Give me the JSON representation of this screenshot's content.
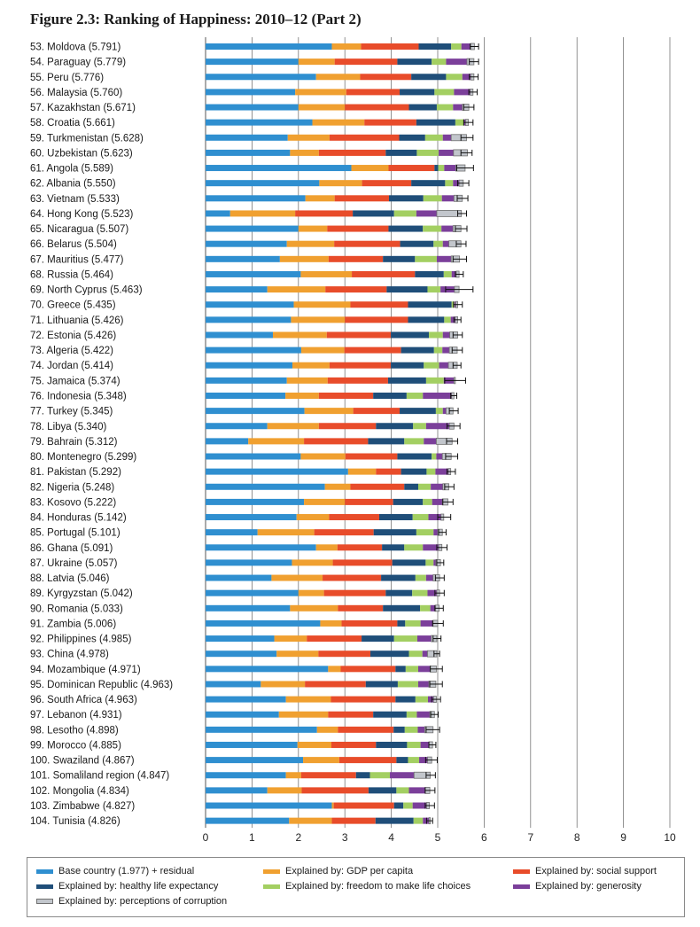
{
  "figure_title": "Figure 2.3: Ranking of Happiness: 2010–12 (Part 2)",
  "colors": {
    "base": "#2f8fd0",
    "gdp": "#f0a030",
    "social": "#e84c2a",
    "health": "#1f4e79",
    "freedom": "#a3cf62",
    "generosity": "#7b3f9a",
    "corruption": "#c2c6cc"
  },
  "legend": [
    {
      "key": "base",
      "label": "Base country (1.977) + residual"
    },
    {
      "key": "gdp",
      "label": "Explained by: GDP per capita"
    },
    {
      "key": "social",
      "label": "Explained by: social support"
    },
    {
      "key": "health",
      "label": "Explained by: healthy life expectancy"
    },
    {
      "key": "freedom",
      "label": "Explained by: freedom to make life choices"
    },
    {
      "key": "generosity",
      "label": "Explained by: generosity"
    },
    {
      "key": "corruption",
      "label": "Explained by: perceptions of corruption"
    }
  ],
  "chart_data": {
    "type": "bar",
    "orientation": "horizontal",
    "stacked": true,
    "xlim": [
      0,
      10
    ],
    "xticks": [
      "0",
      "1",
      "2",
      "3",
      "4",
      "5",
      "6",
      "7",
      "8",
      "9",
      "10"
    ],
    "grid": "vertical",
    "legend_position": "bottom",
    "series_keys": [
      "base",
      "gdp",
      "social",
      "health",
      "freedom",
      "generosity",
      "corruption"
    ],
    "rows": [
      {
        "label": "53. Moldova (5.791)",
        "score": 5.791,
        "segments": [
          2.72,
          0.63,
          1.24,
          0.7,
          0.22,
          0.2,
          0.08
        ],
        "ci": [
          5.7,
          5.88
        ]
      },
      {
        "label": "54. Paraguay (5.779)",
        "score": 5.779,
        "segments": [
          2.0,
          0.78,
          1.35,
          0.74,
          0.31,
          0.45,
          0.15
        ],
        "ci": [
          5.68,
          5.88
        ]
      },
      {
        "label": "55. Peru (5.776)",
        "score": 5.776,
        "segments": [
          2.38,
          0.95,
          1.1,
          0.75,
          0.35,
          0.18,
          0.07
        ],
        "ci": [
          5.68,
          5.87
        ]
      },
      {
        "label": "56. Malaysia (5.760)",
        "score": 5.76,
        "segments": [
          1.93,
          1.1,
          1.15,
          0.75,
          0.42,
          0.35,
          0.06
        ],
        "ci": [
          5.67,
          5.85
        ]
      },
      {
        "label": "57. Kazakhstan (5.671)",
        "score": 5.671,
        "segments": [
          2.0,
          1.0,
          1.38,
          0.6,
          0.35,
          0.2,
          0.14
        ],
        "ci": [
          5.56,
          5.78
        ]
      },
      {
        "label": "58. Croatia (5.661)",
        "score": 5.661,
        "segments": [
          2.3,
          1.12,
          1.12,
          0.84,
          0.18,
          0.04,
          0.06
        ],
        "ci": [
          5.56,
          5.76
        ]
      },
      {
        "label": "59. Turkmenistan (5.628)",
        "score": 5.628,
        "segments": [
          1.77,
          0.9,
          1.5,
          0.56,
          0.38,
          0.18,
          0.33
        ],
        "ci": [
          5.5,
          5.76
        ]
      },
      {
        "label": "60. Uzbekistan (5.623)",
        "score": 5.623,
        "segments": [
          1.82,
          0.62,
          1.44,
          0.67,
          0.47,
          0.32,
          0.3
        ],
        "ci": [
          5.5,
          5.74
        ]
      },
      {
        "label": "61. Angola (5.589)",
        "score": 5.589,
        "segments": [
          3.14,
          0.8,
          0.99,
          0.08,
          0.13,
          0.25,
          0.2
        ],
        "ci": [
          5.41,
          5.77
        ]
      },
      {
        "label": "62. Albania (5.550)",
        "score": 5.55,
        "segments": [
          2.45,
          0.92,
          1.06,
          0.73,
          0.17,
          0.13,
          0.09
        ],
        "ci": [
          5.43,
          5.67
        ]
      },
      {
        "label": "63. Vietnam (5.533)",
        "score": 5.533,
        "segments": [
          2.15,
          0.63,
          1.17,
          0.74,
          0.4,
          0.26,
          0.18
        ],
        "ci": [
          5.42,
          5.65
        ]
      },
      {
        "label": "64. Hong Kong (5.523)",
        "score": 5.523,
        "segments": [
          0.53,
          1.4,
          1.24,
          0.89,
          0.48,
          0.44,
          0.53
        ],
        "ci": [
          5.43,
          5.62
        ]
      },
      {
        "label": "65. Nicaragua (5.507)",
        "score": 5.507,
        "segments": [
          2.0,
          0.62,
          1.32,
          0.74,
          0.4,
          0.25,
          0.17
        ],
        "ci": [
          5.38,
          5.63
        ]
      },
      {
        "label": "66. Belarus (5.504)",
        "score": 5.504,
        "segments": [
          1.75,
          1.02,
          1.42,
          0.72,
          0.2,
          0.13,
          0.26
        ],
        "ci": [
          5.4,
          5.61
        ]
      },
      {
        "label": "67. Mauritius (5.477)",
        "score": 5.477,
        "segments": [
          1.6,
          1.05,
          1.17,
          0.69,
          0.47,
          0.31,
          0.18
        ],
        "ci": [
          5.33,
          5.62
        ]
      },
      {
        "label": "68. Russia (5.464)",
        "score": 5.464,
        "segments": [
          2.05,
          1.1,
          1.36,
          0.62,
          0.17,
          0.1,
          0.06
        ],
        "ci": [
          5.38,
          5.55
        ]
      },
      {
        "label": "69. North Cyprus (5.463)",
        "score": 5.463,
        "segments": [
          1.33,
          1.25,
          1.32,
          0.88,
          0.28,
          0.3,
          0.1
        ],
        "ci": [
          5.17,
          5.76
        ]
      },
      {
        "label": "70. Greece (5.435)",
        "score": 5.435,
        "segments": [
          1.9,
          1.22,
          1.24,
          0.94,
          0.06,
          0.03,
          0.04
        ],
        "ci": [
          5.34,
          5.53
        ]
      },
      {
        "label": "71. Lithuania (5.426)",
        "score": 5.426,
        "segments": [
          1.84,
          1.16,
          1.36,
          0.78,
          0.14,
          0.1,
          0.05
        ],
        "ci": [
          5.35,
          5.5
        ]
      },
      {
        "label": "72. Estonia (5.426)",
        "score": 5.426,
        "segments": [
          1.45,
          1.16,
          1.38,
          0.82,
          0.3,
          0.15,
          0.17
        ],
        "ci": [
          5.33,
          5.53
        ]
      },
      {
        "label": "73. Algeria (5.422)",
        "score": 5.422,
        "segments": [
          2.06,
          0.93,
          1.22,
          0.71,
          0.18,
          0.15,
          0.17
        ],
        "ci": [
          5.31,
          5.53
        ]
      },
      {
        "label": "74. Jordan (5.414)",
        "score": 5.414,
        "segments": [
          1.87,
          0.8,
          1.32,
          0.71,
          0.33,
          0.2,
          0.19
        ],
        "ci": [
          5.33,
          5.5
        ]
      },
      {
        "label": "75. Jamaica (5.374)",
        "score": 5.374,
        "segments": [
          1.75,
          0.88,
          1.3,
          0.82,
          0.38,
          0.22,
          0.03
        ],
        "ci": [
          5.15,
          5.6
        ]
      },
      {
        "label": "76. Indonesia (5.348)",
        "score": 5.348,
        "segments": [
          1.72,
          0.72,
          1.17,
          0.72,
          0.35,
          0.62,
          0.05
        ],
        "ci": [
          5.28,
          5.41
        ]
      },
      {
        "label": "77. Turkey (5.345)",
        "score": 5.345,
        "segments": [
          2.13,
          1.05,
          1.0,
          0.78,
          0.15,
          0.07,
          0.15
        ],
        "ci": [
          5.25,
          5.44
        ]
      },
      {
        "label": "78. Libya (5.340)",
        "score": 5.34,
        "segments": [
          1.33,
          1.11,
          1.23,
          0.8,
          0.28,
          0.5,
          0.1
        ],
        "ci": [
          5.2,
          5.48
        ]
      },
      {
        "label": "79. Bahrain (5.312)",
        "score": 5.312,
        "segments": [
          0.92,
          1.2,
          1.38,
          0.78,
          0.42,
          0.27,
          0.34
        ],
        "ci": [
          5.19,
          5.43
        ]
      },
      {
        "label": "80. Montenegro (5.299)",
        "score": 5.299,
        "segments": [
          2.05,
          0.96,
          1.12,
          0.74,
          0.1,
          0.13,
          0.19
        ],
        "ci": [
          5.17,
          5.43
        ]
      },
      {
        "label": "81. Pakistan (5.292)",
        "score": 5.292,
        "segments": [
          3.07,
          0.6,
          0.54,
          0.55,
          0.19,
          0.28,
          0.05
        ],
        "ci": [
          5.2,
          5.38
        ]
      },
      {
        "label": "82. Nigeria (5.248)",
        "score": 5.248,
        "segments": [
          2.57,
          0.55,
          1.16,
          0.3,
          0.27,
          0.26,
          0.13
        ],
        "ci": [
          5.15,
          5.35
        ]
      },
      {
        "label": "83. Kosovo (5.222)",
        "score": 5.222,
        "segments": [
          2.12,
          0.88,
          1.04,
          0.64,
          0.2,
          0.22,
          0.12
        ],
        "ci": [
          5.11,
          5.33
        ]
      },
      {
        "label": "84. Honduras (5.142)",
        "score": 5.142,
        "segments": [
          1.96,
          0.7,
          1.08,
          0.72,
          0.34,
          0.27,
          0.06
        ],
        "ci": [
          5.0,
          5.28
        ]
      },
      {
        "label": "85. Portugal (5.101)",
        "score": 5.101,
        "segments": [
          1.12,
          1.22,
          1.28,
          0.92,
          0.37,
          0.09,
          0.1
        ],
        "ci": [
          5.02,
          5.18
        ]
      },
      {
        "label": "86. Ghana (5.091)",
        "score": 5.091,
        "segments": [
          2.38,
          0.46,
          0.96,
          0.48,
          0.4,
          0.34,
          0.07
        ],
        "ci": [
          4.98,
          5.2
        ]
      },
      {
        "label": "87. Ukraine (5.057)",
        "score": 5.057,
        "segments": [
          1.86,
          0.88,
          1.28,
          0.72,
          0.17,
          0.05,
          0.1
        ],
        "ci": [
          4.98,
          5.13
        ]
      },
      {
        "label": "88. Latvia (5.046)",
        "score": 5.046,
        "segments": [
          1.42,
          1.1,
          1.26,
          0.74,
          0.23,
          0.15,
          0.14
        ],
        "ci": [
          4.95,
          5.14
        ]
      },
      {
        "label": "89. Kyrgyzstan (5.042)",
        "score": 5.042,
        "segments": [
          2.0,
          0.55,
          1.33,
          0.57,
          0.33,
          0.2,
          0.06
        ],
        "ci": [
          4.94,
          5.14
        ]
      },
      {
        "label": "90. Romania (5.033)",
        "score": 5.033,
        "segments": [
          1.82,
          1.03,
          0.97,
          0.8,
          0.22,
          0.11,
          0.08
        ],
        "ci": [
          4.94,
          5.12
        ]
      },
      {
        "label": "91. Zambia (5.006)",
        "score": 5.006,
        "segments": [
          2.47,
          0.46,
          1.2,
          0.17,
          0.33,
          0.27,
          0.1
        ],
        "ci": [
          4.89,
          5.12
        ]
      },
      {
        "label": "92. Philippines (4.985)",
        "score": 4.985,
        "segments": [
          1.48,
          0.7,
          1.18,
          0.7,
          0.5,
          0.3,
          0.12
        ],
        "ci": [
          4.9,
          5.07
        ]
      },
      {
        "label": "93. China (4.978)",
        "score": 4.978,
        "segments": [
          1.53,
          0.9,
          1.12,
          0.83,
          0.29,
          0.11,
          0.2
        ],
        "ci": [
          4.92,
          5.04
        ]
      },
      {
        "label": "94. Mozambique (4.971)",
        "score": 4.971,
        "segments": [
          2.64,
          0.27,
          1.18,
          0.22,
          0.27,
          0.26,
          0.13
        ],
        "ci": [
          4.84,
          5.1
        ]
      },
      {
        "label": "95. Dominican Republic (4.963)",
        "score": 4.963,
        "segments": [
          1.19,
          0.95,
          1.31,
          0.69,
          0.44,
          0.23,
          0.15
        ],
        "ci": [
          4.83,
          5.1
        ]
      },
      {
        "label": "96. South Africa (4.963)",
        "score": 4.963,
        "segments": [
          1.73,
          0.97,
          1.39,
          0.43,
          0.27,
          0.12,
          0.06
        ],
        "ci": [
          4.87,
          5.06
        ]
      },
      {
        "label": "97. Lebanon (4.931)",
        "score": 4.931,
        "segments": [
          1.58,
          1.06,
          0.97,
          0.72,
          0.22,
          0.28,
          0.1
        ],
        "ci": [
          4.85,
          5.01
        ]
      },
      {
        "label": "98. Lesotho (4.898)",
        "score": 4.898,
        "segments": [
          2.4,
          0.45,
          1.2,
          0.24,
          0.28,
          0.15,
          0.18
        ],
        "ci": [
          4.75,
          5.04
        ]
      },
      {
        "label": "99. Morocco (4.885)",
        "score": 4.885,
        "segments": [
          1.98,
          0.73,
          0.96,
          0.67,
          0.29,
          0.18,
          0.08
        ],
        "ci": [
          4.81,
          4.96
        ]
      },
      {
        "label": "100. Swaziland (4.867)",
        "score": 4.867,
        "segments": [
          2.1,
          0.78,
          1.23,
          0.25,
          0.24,
          0.18,
          0.09
        ],
        "ci": [
          4.74,
          4.99
        ]
      },
      {
        "label": "101. Somaliland region (4.847)",
        "score": 4.847,
        "segments": [
          1.73,
          0.33,
          1.18,
          0.3,
          0.43,
          0.52,
          0.35
        ],
        "ci": [
          4.75,
          4.95
        ]
      },
      {
        "label": "102. Mongolia (4.834)",
        "score": 4.834,
        "segments": [
          1.33,
          0.74,
          1.44,
          0.6,
          0.27,
          0.35,
          0.1
        ],
        "ci": [
          4.73,
          4.94
        ]
      },
      {
        "label": "103. Zimbabwe (4.827)",
        "score": 4.827,
        "segments": [
          2.72,
          0.04,
          1.3,
          0.2,
          0.2,
          0.3,
          0.06
        ],
        "ci": [
          4.73,
          4.93
        ]
      },
      {
        "label": "104. Tunisia (4.826)",
        "score": 4.826,
        "segments": [
          1.8,
          0.92,
          0.94,
          0.82,
          0.2,
          0.13,
          0.03
        ],
        "ci": [
          4.76,
          4.89
        ]
      }
    ]
  }
}
